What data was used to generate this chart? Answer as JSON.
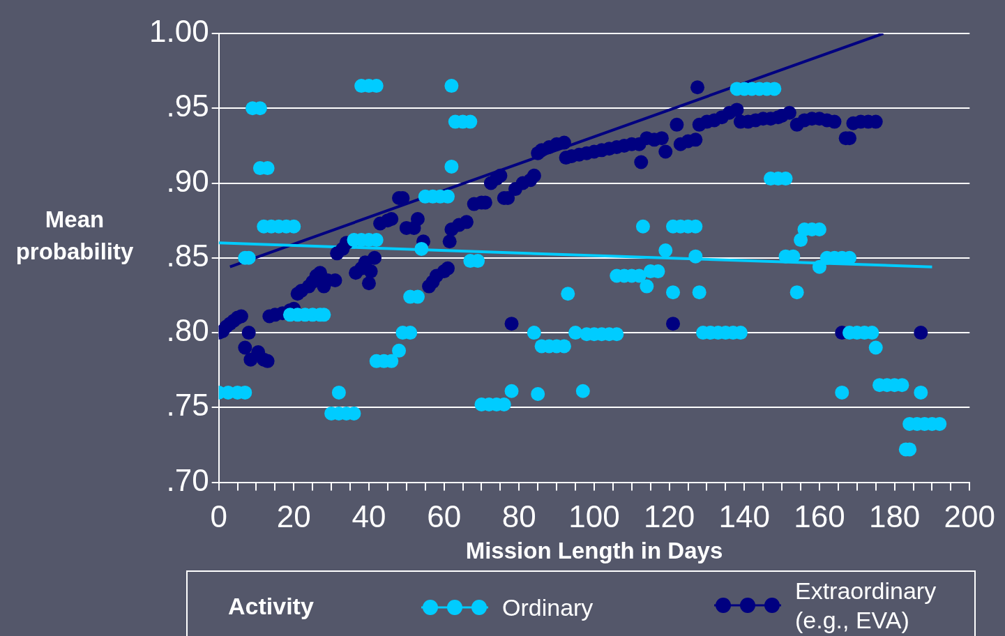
{
  "chart_data": {
    "type": "scatter",
    "xlabel": "Mission Length in Days",
    "ylabel": "Mean probability",
    "legend_title": "Activity",
    "legend": "bottom",
    "grid": "y",
    "marker": "circle",
    "xlim": [
      0,
      200
    ],
    "xticks": [
      0,
      {
        "value": 5,
        "label": null
      },
      {
        "value": 10,
        "label": null
      },
      {
        "value": 15,
        "label": null
      },
      20,
      {
        "value": 25,
        "label": null
      },
      {
        "value": 30,
        "label": null
      },
      {
        "value": 35,
        "label": null
      },
      40,
      {
        "value": 45,
        "label": null
      },
      {
        "value": 50,
        "label": null
      },
      {
        "value": 55,
        "label": null
      },
      60,
      {
        "value": 65,
        "label": null
      },
      {
        "value": 70,
        "label": null
      },
      {
        "value": 75,
        "label": null
      },
      80,
      {
        "value": 85,
        "label": null
      },
      {
        "value": 90,
        "label": null
      },
      {
        "value": 95,
        "label": null
      },
      100,
      {
        "value": 105,
        "label": null
      },
      {
        "value": 110,
        "label": null
      },
      {
        "value": 115,
        "label": null
      },
      120,
      {
        "value": 125,
        "label": null
      },
      {
        "value": 130,
        "label": null
      },
      {
        "value": 135,
        "label": null
      },
      140,
      {
        "value": 145,
        "label": null
      },
      {
        "value": 150,
        "label": null
      },
      {
        "value": 155,
        "label": null
      },
      160,
      {
        "value": 165,
        "label": null
      },
      {
        "value": 170,
        "label": null
      },
      {
        "value": 175,
        "label": null
      },
      180,
      {
        "value": 185,
        "label": null
      },
      {
        "value": 190,
        "label": null
      },
      {
        "value": 195,
        "label": null
      },
      200
    ],
    "ylim": [
      0.7,
      1.0
    ],
    "yticks": [
      {
        "value": 0.7,
        "label": ".70"
      },
      {
        "value": 0.75,
        "label": ".75"
      },
      {
        "value": 0.8,
        "label": ".80"
      },
      {
        "value": 0.85,
        "label": ".85"
      },
      {
        "value": 0.9,
        "label": ".90"
      },
      {
        "value": 0.95,
        "label": ".95"
      },
      {
        "value": 1.0,
        "label": "1.00"
      }
    ],
    "series": [
      {
        "name": "Ordinary",
        "color": "#00ccff",
        "x": [
          0,
          2.5,
          5,
          7,
          7,
          8,
          9,
          11,
          11,
          13,
          12,
          14,
          16,
          18,
          20,
          19,
          21,
          23,
          25,
          27,
          28,
          30,
          32,
          34,
          36,
          32,
          38,
          40,
          42,
          36,
          38,
          40,
          42,
          42,
          44,
          46,
          48,
          49,
          51,
          51,
          53,
          54,
          55,
          57,
          59,
          61,
          62,
          62,
          63,
          65,
          67,
          67,
          69,
          70,
          72,
          74,
          76,
          78,
          84,
          85,
          86,
          88,
          90,
          92,
          93,
          95,
          97,
          98,
          100,
          102,
          104,
          106,
          106,
          108,
          110,
          112,
          113,
          114,
          115,
          117,
          119,
          121,
          121,
          123,
          125,
          127,
          127,
          128,
          129,
          131,
          133,
          135,
          137,
          139,
          138,
          140,
          142,
          144,
          146,
          148,
          147,
          149,
          151,
          151,
          153,
          154,
          155,
          156,
          158,
          160,
          160,
          162,
          164,
          166,
          168,
          166,
          168,
          170,
          172,
          174,
          175,
          176,
          178,
          180,
          182,
          183,
          184,
          187,
          184,
          186,
          188,
          190,
          192
        ],
        "values": [
          0.76,
          0.76,
          0.76,
          0.76,
          0.85,
          0.85,
          0.95,
          0.95,
          0.91,
          0.91,
          0.871,
          0.871,
          0.871,
          0.871,
          0.871,
          0.812,
          0.812,
          0.812,
          0.812,
          0.812,
          0.812,
          0.746,
          0.746,
          0.746,
          0.746,
          0.76,
          0.965,
          0.965,
          0.965,
          0.862,
          0.862,
          0.862,
          0.862,
          0.781,
          0.781,
          0.781,
          0.788,
          0.8,
          0.8,
          0.824,
          0.824,
          0.856,
          0.891,
          0.891,
          0.891,
          0.891,
          0.911,
          0.965,
          0.941,
          0.941,
          0.941,
          0.848,
          0.848,
          0.752,
          0.752,
          0.752,
          0.752,
          0.761,
          0.8,
          0.759,
          0.791,
          0.791,
          0.791,
          0.791,
          0.826,
          0.8,
          0.761,
          0.799,
          0.799,
          0.799,
          0.799,
          0.799,
          0.838,
          0.838,
          0.838,
          0.838,
          0.871,
          0.831,
          0.841,
          0.841,
          0.855,
          0.827,
          0.871,
          0.871,
          0.871,
          0.871,
          0.851,
          0.827,
          0.8,
          0.8,
          0.8,
          0.8,
          0.8,
          0.8,
          0.963,
          0.963,
          0.963,
          0.963,
          0.963,
          0.963,
          0.903,
          0.903,
          0.903,
          0.851,
          0.851,
          0.827,
          0.862,
          0.869,
          0.869,
          0.869,
          0.844,
          0.85,
          0.85,
          0.85,
          0.85,
          0.76,
          0.8,
          0.8,
          0.8,
          0.8,
          0.79,
          0.765,
          0.765,
          0.765,
          0.765,
          0.722,
          0.722,
          0.76,
          0.739,
          0.739,
          0.739,
          0.739,
          0.739
        ]
      },
      {
        "name": "Extraordinary (e.g., EVA)",
        "color": "#000080",
        "x": [
          0,
          1,
          2,
          3,
          4,
          5,
          6,
          7,
          8,
          8.5,
          10.5,
          12,
          13,
          13.5,
          15,
          17,
          19,
          20,
          21,
          22,
          24,
          25,
          26,
          27,
          28,
          29,
          31,
          31.5,
          33,
          34,
          36.5,
          38,
          39,
          40,
          40.5,
          41.5,
          43,
          45,
          46,
          48,
          49,
          50,
          52,
          53,
          54.5,
          56,
          57,
          58,
          60,
          61,
          61.5,
          62,
          64,
          66,
          68,
          70,
          71,
          72.5,
          74,
          75,
          76,
          77,
          78,
          79,
          81,
          83,
          84,
          85,
          86,
          88,
          90,
          92,
          92.5,
          94,
          96,
          98,
          100,
          102,
          104,
          106,
          108,
          110,
          112,
          112.5,
          114,
          116,
          118,
          119,
          121,
          122,
          123,
          125,
          127,
          127.5,
          128,
          130,
          132,
          134,
          136,
          138,
          139,
          141,
          143,
          145,
          147,
          149,
          150,
          152,
          154,
          156,
          158,
          160,
          162,
          164,
          166,
          167,
          168,
          169,
          171,
          173,
          175,
          187
        ],
        "values": [
          0.8,
          0.801,
          0.804,
          0.806,
          0.808,
          0.81,
          0.811,
          0.79,
          0.8,
          0.782,
          0.787,
          0.782,
          0.781,
          0.811,
          0.812,
          0.813,
          0.815,
          0.816,
          0.826,
          0.828,
          0.831,
          0.834,
          0.838,
          0.84,
          0.831,
          0.835,
          0.835,
          0.853,
          0.856,
          0.86,
          0.84,
          0.843,
          0.847,
          0.833,
          0.841,
          0.85,
          0.873,
          0.875,
          0.876,
          0.89,
          0.89,
          0.87,
          0.87,
          0.876,
          0.861,
          0.831,
          0.834,
          0.838,
          0.841,
          0.843,
          0.861,
          0.869,
          0.872,
          0.874,
          0.886,
          0.887,
          0.887,
          0.9,
          0.903,
          0.905,
          0.89,
          0.89,
          0.806,
          0.896,
          0.9,
          0.902,
          0.905,
          0.92,
          0.922,
          0.924,
          0.926,
          0.927,
          0.917,
          0.918,
          0.919,
          0.92,
          0.921,
          0.922,
          0.923,
          0.924,
          0.925,
          0.926,
          0.926,
          0.914,
          0.93,
          0.929,
          0.93,
          0.921,
          0.806,
          0.939,
          0.926,
          0.928,
          0.929,
          0.964,
          0.939,
          0.941,
          0.942,
          0.944,
          0.947,
          0.949,
          0.941,
          0.941,
          0.942,
          0.943,
          0.943,
          0.944,
          0.945,
          0.947,
          0.939,
          0.942,
          0.943,
          0.943,
          0.942,
          0.941,
          0.8,
          0.93,
          0.93,
          0.94,
          0.941,
          0.941,
          0.941,
          0.8
        ]
      },
      {
        "type": "line",
        "marker": "none",
        "color": "#00ccff",
        "x": [
          0,
          190
        ],
        "values": [
          0.86,
          0.844
        ]
      },
      {
        "type": "line",
        "marker": "none",
        "color": "#000080",
        "x": [
          3,
          177
        ],
        "values": [
          0.844,
          1.0
        ]
      }
    ]
  }
}
